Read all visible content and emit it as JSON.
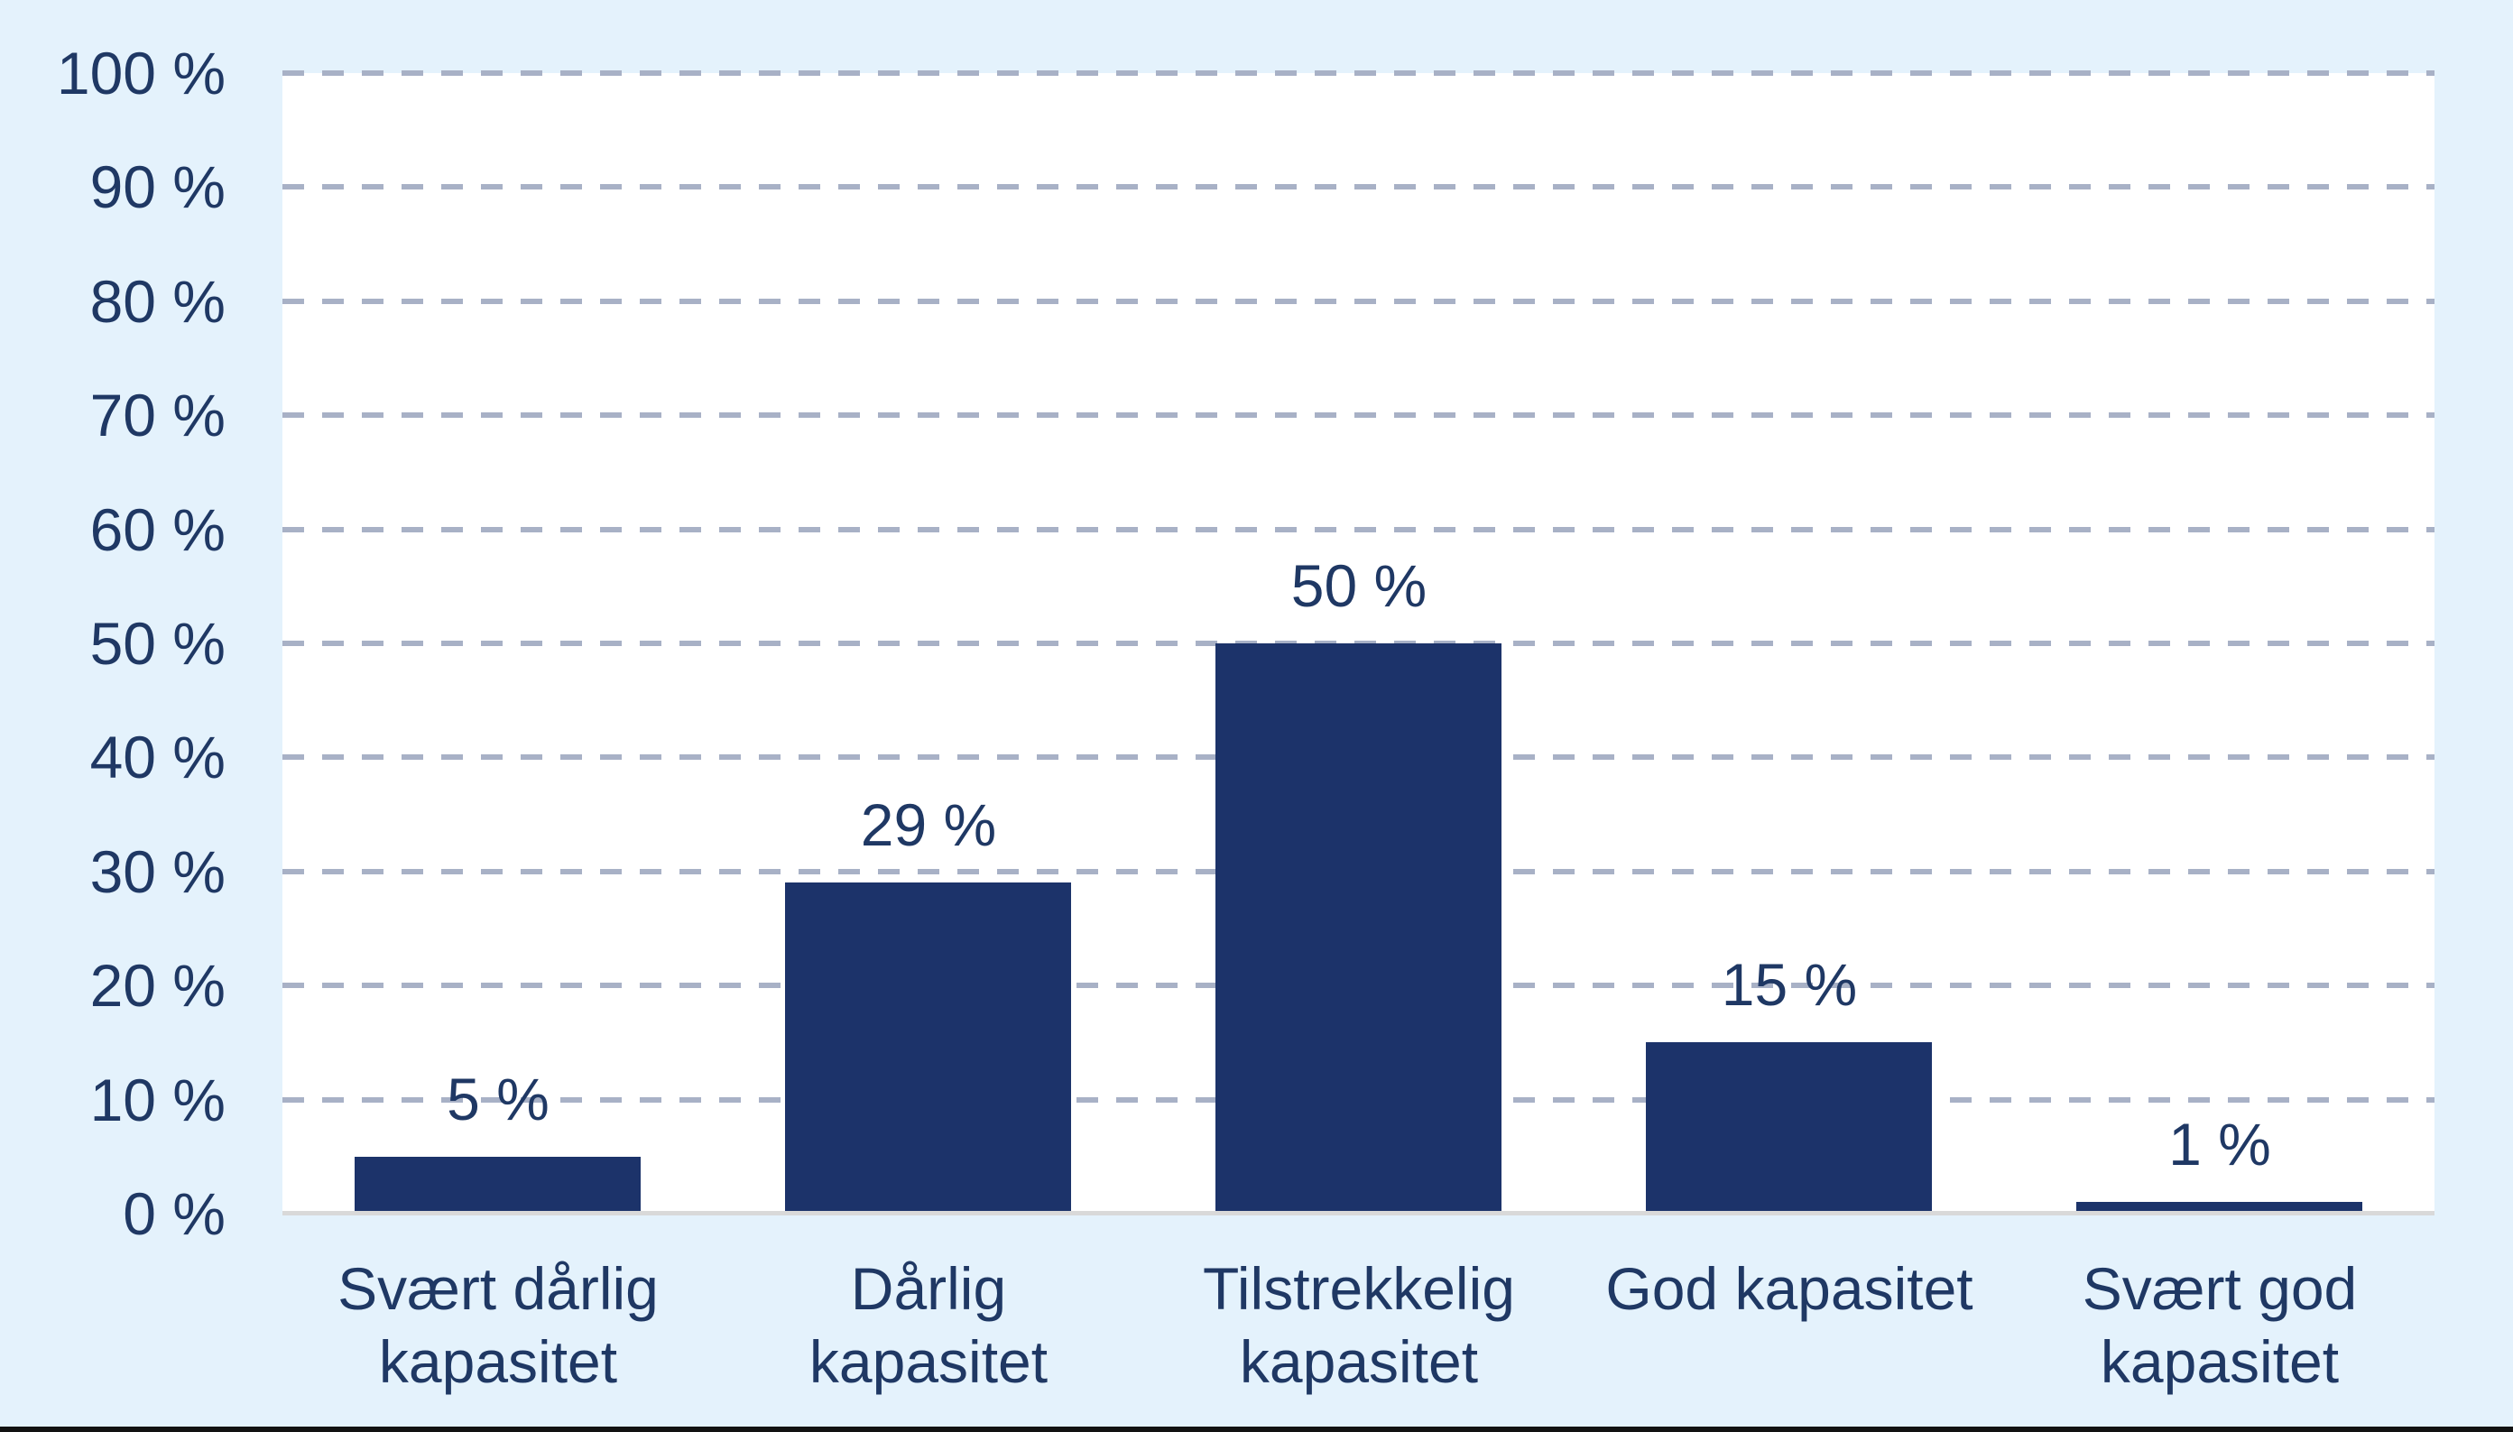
{
  "chart_data": {
    "type": "bar",
    "title": "",
    "xlabel": "",
    "ylabel": "",
    "categories": [
      "Svært dårlig kapasitet",
      "Dårlig kapasitet",
      "Tilstrekkelig kapasitet",
      "God kapasitet",
      "Svært god kapasitet"
    ],
    "category_label_lines": [
      [
        "Svært dårlig",
        "kapasitet"
      ],
      [
        "Dårlig",
        "kapasitet"
      ],
      [
        "Tilstrekkelig",
        "kapasitet"
      ],
      [
        "God kapasitet"
      ],
      [
        "Svært god",
        "kapasitet"
      ]
    ],
    "values": [
      5,
      29,
      50,
      15,
      1
    ],
    "value_labels": [
      "5 %",
      "29 %",
      "50 %",
      "15 %",
      "1 %"
    ],
    "ylim": [
      0,
      100
    ],
    "y_ticks": [
      0,
      10,
      20,
      30,
      40,
      50,
      60,
      70,
      80,
      90,
      100
    ],
    "y_tick_labels": [
      "0 %",
      "10 %",
      "20 %",
      "30 %",
      "40 %",
      "50 %",
      "60 %",
      "70 %",
      "80 %",
      "90 %",
      "100 %"
    ],
    "grid": "horizontal-dashed",
    "legend": "none",
    "colors": {
      "bar_fill": "#1C336A",
      "text": "#1F3864",
      "gridline": "#A8B1C6",
      "axis_line": "#D9D9D9",
      "plot_background": "#FFFFFF",
      "page_background": "#E4F2FC",
      "bottom_border": "#121212"
    }
  }
}
